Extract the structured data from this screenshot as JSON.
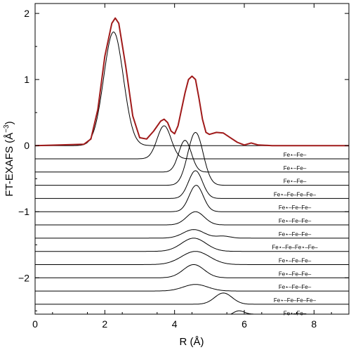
{
  "chart_data": {
    "type": "line",
    "xlabel": "R (Å)",
    "ylabel": "FT-EXAFS (Å",
    "ylabel_sup": "−3",
    "ylabel_close": ")",
    "xlim": [
      0,
      9
    ],
    "ylim": [
      -2.55,
      2.15
    ],
    "x_ticks": [
      0,
      2,
      4,
      6,
      8
    ],
    "x_tick_labels": [
      "0",
      "2",
      "4",
      "6",
      "8"
    ],
    "y_ticks": [
      -2,
      -1,
      0,
      1,
      2
    ],
    "y_tick_labels": [
      "−2",
      "−1",
      "0",
      "1",
      "2"
    ],
    "grid": false,
    "total": {
      "color": "#a01a1a",
      "x": [
        0,
        1.4,
        1.6,
        1.8,
        2.0,
        2.2,
        2.3,
        2.4,
        2.6,
        2.8,
        3.0,
        3.2,
        3.4,
        3.6,
        3.7,
        3.8,
        3.9,
        4.0,
        4.1,
        4.2,
        4.3,
        4.4,
        4.5,
        4.6,
        4.7,
        4.8,
        4.9,
        5.0,
        5.2,
        5.4,
        5.6,
        5.8,
        6.0,
        6.2,
        6.4,
        6.6,
        6.8,
        9.0
      ],
      "y": [
        0,
        0.02,
        0.1,
        0.55,
        1.35,
        1.85,
        1.93,
        1.85,
        1.2,
        0.45,
        0.12,
        0.1,
        0.22,
        0.37,
        0.4,
        0.35,
        0.22,
        0.18,
        0.3,
        0.55,
        0.8,
        1.0,
        1.05,
        1.0,
        0.72,
        0.4,
        0.2,
        0.17,
        0.2,
        0.19,
        0.12,
        0.05,
        0.01,
        0.04,
        0.01,
        0.005,
        0,
        0
      ]
    },
    "series": [
      {
        "name": "",
        "baseline": 0,
        "peaks": [
          [
            2.25,
            1.72,
            0.28
          ]
        ]
      },
      {
        "name": "Fe⋆–Fe–",
        "baseline": -0.2,
        "peaks": [
          [
            3.7,
            0.5,
            0.2
          ]
        ]
      },
      {
        "name": "Fe⋆–Fe–",
        "baseline": -0.4,
        "peaks": [
          [
            4.3,
            0.48,
            0.18
          ]
        ]
      },
      {
        "name": "Fe⋆–Fe–",
        "baseline": -0.6,
        "peaks": [
          [
            4.6,
            0.8,
            0.22
          ]
        ]
      },
      {
        "name": "Fe⋆–Fe–Fe–Fe–",
        "baseline": -0.8,
        "peaks": [
          [
            4.6,
            0.42,
            0.2
          ]
        ]
      },
      {
        "name": "Fe⋆–Fe–Fe–",
        "baseline": -1.0,
        "peaks": [
          [
            4.62,
            0.4,
            0.2
          ]
        ]
      },
      {
        "name": "Fe⋆–Fe–Fe–",
        "baseline": -1.2,
        "peaks": [
          [
            4.6,
            0.2,
            0.25
          ]
        ]
      },
      {
        "name": "Fe⋆–Fe–Fe–",
        "baseline": -1.4,
        "peaks": [
          [
            4.55,
            0.13,
            0.3
          ],
          [
            5.4,
            0.03,
            0.2
          ]
        ]
      },
      {
        "name": "Fe⋆–Fe–Fe⋆–Fe–",
        "baseline": -1.6,
        "peaks": [
          [
            4.55,
            0.2,
            0.35
          ]
        ]
      },
      {
        "name": "Fe⋆–Fe–Fe–",
        "baseline": -1.8,
        "peaks": [
          [
            4.6,
            0.2,
            0.4
          ]
        ]
      },
      {
        "name": "Fe⋆–Fe–Fe–",
        "baseline": -2.0,
        "peaks": [
          [
            4.55,
            0.2,
            0.3
          ]
        ]
      },
      {
        "name": "Fe⋆–Fe–Fe–",
        "baseline": -2.2,
        "peaks": [
          [
            4.6,
            0.1,
            0.35
          ]
        ]
      },
      {
        "name": "Fe⋆–Fe–Fe–Fe–",
        "baseline": -2.4,
        "peaks": [
          [
            5.4,
            0.17,
            0.25
          ]
        ]
      },
      {
        "name": "Fe⋆–Fe–",
        "baseline": -2.6,
        "peaks": [
          [
            5.85,
            0.1,
            0.2
          ],
          [
            6.3,
            0.04,
            0.15
          ]
        ]
      }
    ]
  }
}
